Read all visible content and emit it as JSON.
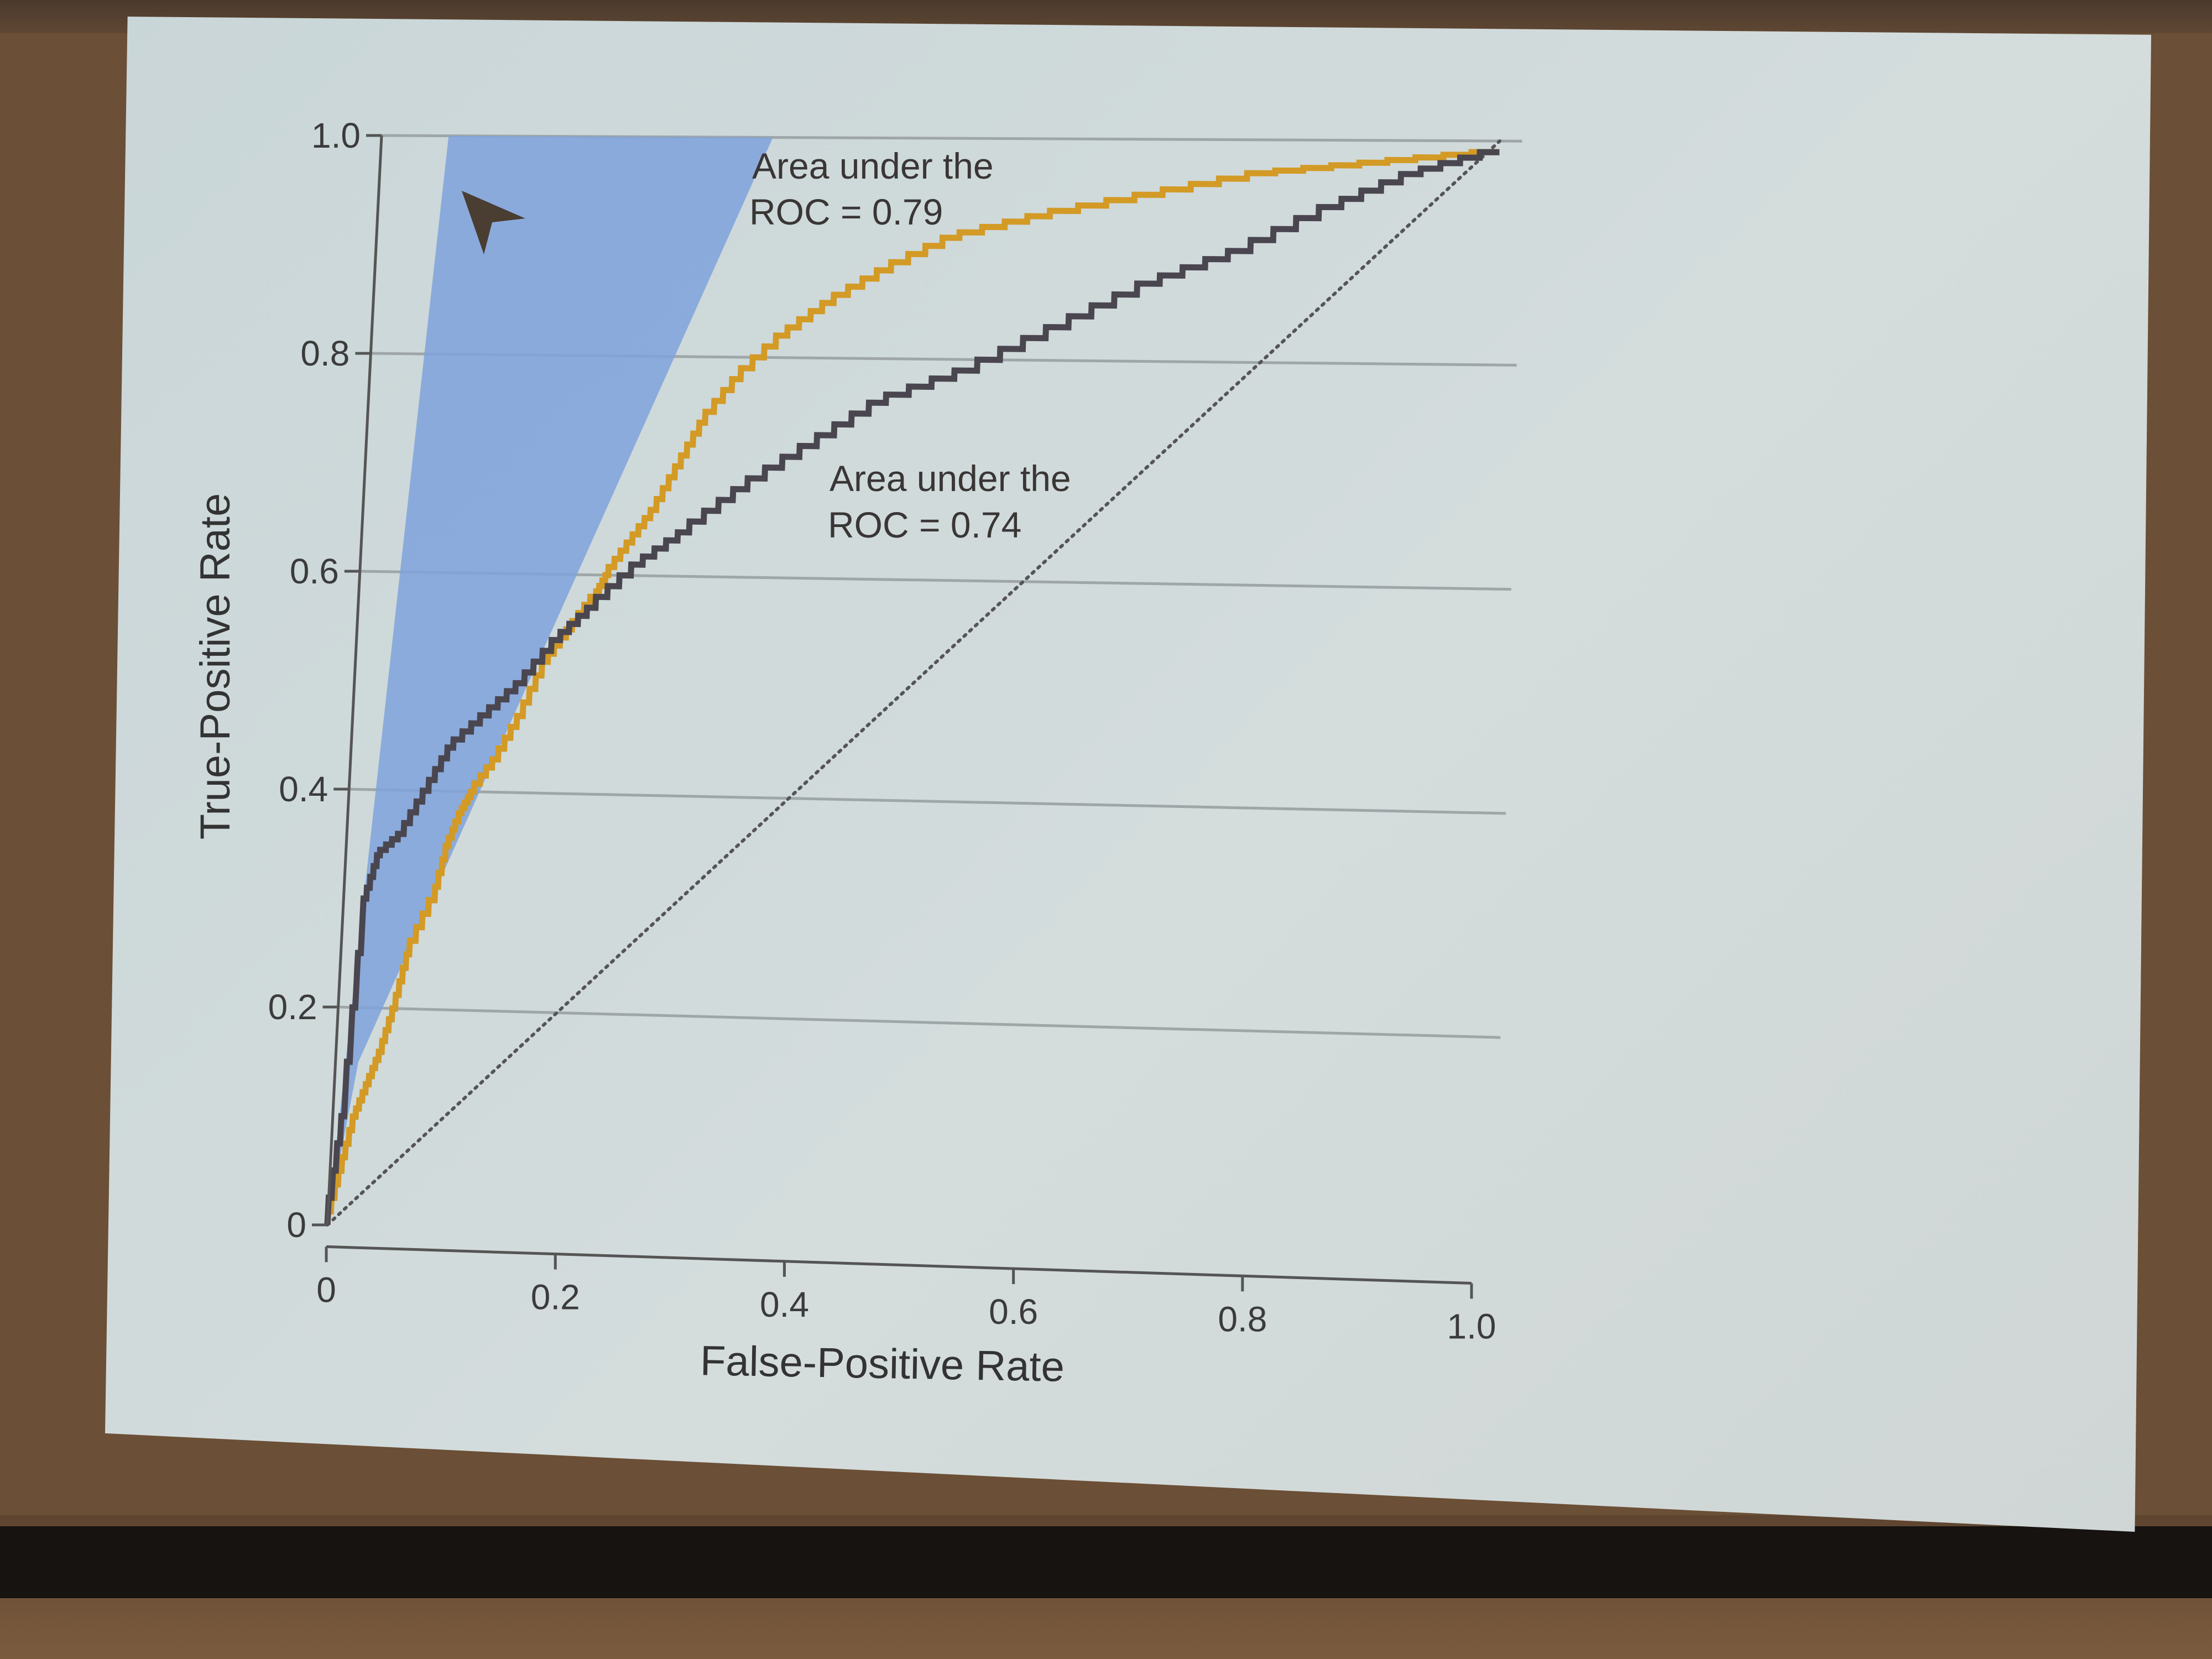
{
  "chart_data": {
    "type": "line",
    "title": "",
    "xlabel": "False-Positive Rate",
    "ylabel": "True-Positive Rate",
    "xlim": [
      0,
      1
    ],
    "ylim": [
      0,
      1
    ],
    "x_ticks": [
      "0",
      "0.2",
      "0.4",
      "0.6",
      "0.8",
      "1.0"
    ],
    "y_ticks": [
      "0",
      "0.2",
      "0.4",
      "0.6",
      "0.8",
      "1.0"
    ],
    "grid": "horizontal",
    "legend": "none",
    "series": [
      {
        "color": "#d39a25",
        "annotation": [
          "Area under the",
          "ROC = 0.79"
        ],
        "points": [
          [
            0,
            0
          ],
          [
            0.01,
            0.05
          ],
          [
            0.02,
            0.1
          ],
          [
            0.03,
            0.13
          ],
          [
            0.04,
            0.16
          ],
          [
            0.05,
            0.2
          ],
          [
            0.06,
            0.25
          ],
          [
            0.08,
            0.3
          ],
          [
            0.09,
            0.35
          ],
          [
            0.1,
            0.38
          ],
          [
            0.11,
            0.4
          ],
          [
            0.13,
            0.43
          ],
          [
            0.15,
            0.47
          ],
          [
            0.17,
            0.52
          ],
          [
            0.19,
            0.55
          ],
          [
            0.21,
            0.58
          ],
          [
            0.22,
            0.6
          ],
          [
            0.24,
            0.63
          ],
          [
            0.26,
            0.66
          ],
          [
            0.28,
            0.7
          ],
          [
            0.3,
            0.74
          ],
          [
            0.33,
            0.78
          ],
          [
            0.37,
            0.82
          ],
          [
            0.41,
            0.85
          ],
          [
            0.46,
            0.88
          ],
          [
            0.52,
            0.91
          ],
          [
            0.6,
            0.93
          ],
          [
            0.7,
            0.95
          ],
          [
            0.8,
            0.97
          ],
          [
            0.9,
            0.98
          ],
          [
            1.0,
            0.99
          ]
        ]
      },
      {
        "color": "#4a4650",
        "annotation": [
          "Area under the",
          "ROC = 0.74"
        ],
        "points": [
          [
            0,
            0
          ],
          [
            0.01,
            0.1
          ],
          [
            0.02,
            0.3
          ],
          [
            0.03,
            0.34
          ],
          [
            0.05,
            0.36
          ],
          [
            0.07,
            0.4
          ],
          [
            0.09,
            0.44
          ],
          [
            0.12,
            0.47
          ],
          [
            0.15,
            0.5
          ],
          [
            0.18,
            0.54
          ],
          [
            0.21,
            0.57
          ],
          [
            0.25,
            0.61
          ],
          [
            0.29,
            0.64
          ],
          [
            0.34,
            0.68
          ],
          [
            0.4,
            0.72
          ],
          [
            0.46,
            0.76
          ],
          [
            0.54,
            0.79
          ],
          [
            0.62,
            0.83
          ],
          [
            0.7,
            0.87
          ],
          [
            0.78,
            0.9
          ],
          [
            0.86,
            0.94
          ],
          [
            0.93,
            0.97
          ],
          [
            1.0,
            0.99
          ]
        ]
      }
    ],
    "reference_line": {
      "style": "dotted",
      "points": [
        [
          0,
          0
        ],
        [
          1,
          1
        ]
      ]
    },
    "highlight": {
      "color": "#7fa2dc",
      "points": [
        [
          0,
          0
        ],
        [
          0.06,
          1.0
        ],
        [
          0.35,
          1.0
        ],
        [
          0.02,
          0.15
        ]
      ]
    },
    "pointer_color": "#4a3d32"
  }
}
